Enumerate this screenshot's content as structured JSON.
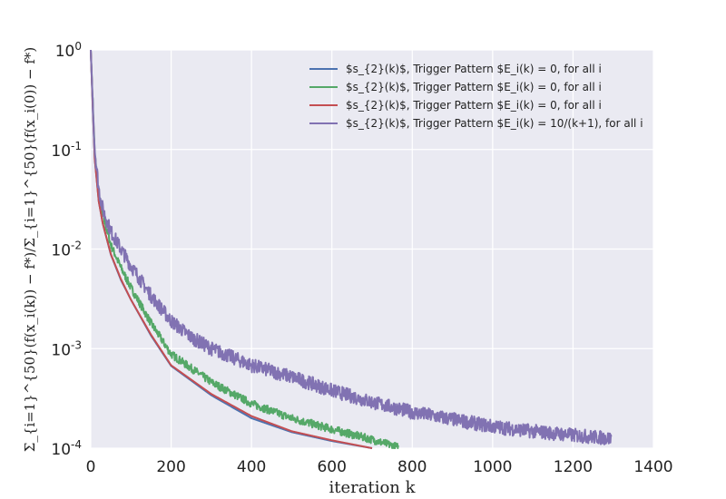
{
  "chart_data": {
    "type": "line",
    "title": "",
    "xlabel": "iteration k",
    "ylabel": "Σ_{i=1}^{50}(f(x_i(k)) − f*)/Σ_{i=1}^{50}(f(x_i(0)) − f*)",
    "xlim": [
      0,
      1400
    ],
    "ylim_log10": [
      -4,
      0
    ],
    "y_scale": "log",
    "grid": true,
    "background": "#eaeaf2",
    "legend_position": "top-right",
    "x_ticks": [
      0,
      200,
      400,
      600,
      800,
      1000,
      1200,
      1400
    ],
    "x_tick_labels": [
      "0",
      "200",
      "400",
      "600",
      "800",
      "1000",
      "1200",
      "1400"
    ],
    "y_ticks": [
      {
        "base": "10",
        "exp": "0",
        "value": 1
      },
      {
        "base": "10",
        "exp": "-1",
        "value": 0.1
      },
      {
        "base": "10",
        "exp": "-2",
        "value": 0.01
      },
      {
        "base": "10",
        "exp": "-3",
        "value": 0.001
      },
      {
        "base": "10",
        "exp": "-4",
        "value": 0.0001
      }
    ],
    "series": [
      {
        "name": "$s_{2}(k)$, Trigger Pattern $E_i(k) = 0, for all i",
        "color": "#4c72b0",
        "noise": 0,
        "x": [
          0,
          5,
          10,
          20,
          30,
          50,
          75,
          100,
          150,
          200,
          300,
          400,
          500,
          600,
          700
        ],
        "y": [
          1.0,
          0.26,
          0.08,
          0.03,
          0.018,
          0.0088,
          0.0049,
          0.0031,
          0.00135,
          0.00067,
          0.00034,
          0.0002,
          0.000145,
          0.000118,
          0.0001
        ]
      },
      {
        "name": "$s_{2}(k)$, Trigger Pattern $E_i(k) = 0, for all i",
        "color": "#55a868",
        "noise": 0.04,
        "x": [
          0,
          5,
          10,
          20,
          30,
          50,
          75,
          100,
          150,
          200,
          300,
          400,
          500,
          600,
          700,
          765
        ],
        "y": [
          1.0,
          0.3,
          0.09,
          0.035,
          0.022,
          0.011,
          0.0065,
          0.0041,
          0.0018,
          0.00088,
          0.00046,
          0.00028,
          0.0002,
          0.000155,
          0.000122,
          0.000102
        ]
      },
      {
        "name": "$s_{2}(k)$, Trigger Pattern $E_i(k) = 0, for all i",
        "color": "#c44e52",
        "noise": 0,
        "x": [
          0,
          5,
          10,
          20,
          30,
          50,
          75,
          100,
          150,
          200,
          300,
          400,
          500,
          600,
          700
        ],
        "y": [
          1.0,
          0.27,
          0.08,
          0.03,
          0.018,
          0.0089,
          0.005,
          0.0031,
          0.00138,
          0.00068,
          0.00035,
          0.00021,
          0.000148,
          0.00012,
          0.0001
        ]
      },
      {
        "name": "$s_{2}(k)$, Trigger Pattern $E_i(k) = 10/(k+1), for all i",
        "color": "#8172b2",
        "noise": 0.07,
        "x": [
          0,
          5,
          10,
          20,
          30,
          50,
          75,
          100,
          150,
          200,
          250,
          300,
          400,
          500,
          600,
          700,
          800,
          900,
          1000,
          1100,
          1200,
          1295
        ],
        "y": [
          1.0,
          0.3,
          0.1,
          0.04,
          0.025,
          0.015,
          0.01,
          0.0068,
          0.0034,
          0.0019,
          0.0013,
          0.001,
          0.00068,
          0.00052,
          0.00038,
          0.00029,
          0.00023,
          0.000195,
          0.000165,
          0.000148,
          0.000135,
          0.000125
        ]
      }
    ]
  }
}
